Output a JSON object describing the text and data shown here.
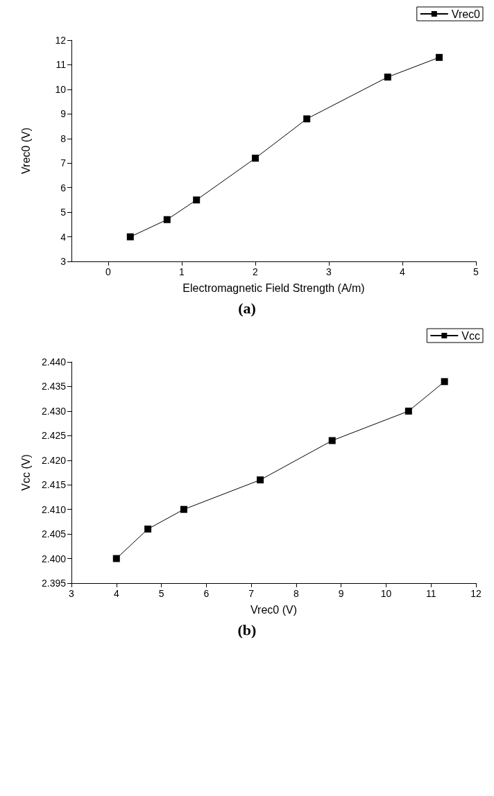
{
  "chart_data": [
    {
      "type": "line",
      "xlabel": "Electromagnetic Field Strength (A/m)",
      "ylabel": "Vrec0 (V)",
      "annotations": [
        "(a)"
      ],
      "series": [
        {
          "name": "Vrec0",
          "color": "#000000",
          "x": [
            0.3,
            0.8,
            1.2,
            2.0,
            2.7,
            3.8,
            4.5
          ],
          "values": [
            4.0,
            4.7,
            5.5,
            7.2,
            8.8,
            10.5,
            11.3
          ]
        }
      ],
      "xlim": [
        -0.5,
        5
      ],
      "xticks": [
        0,
        1,
        2,
        3,
        4,
        5
      ],
      "ylim": [
        3,
        12
      ],
      "yticks": [
        3,
        4,
        5,
        6,
        7,
        8,
        9,
        10,
        11,
        12
      ],
      "grid": false,
      "legend": "top right",
      "marker": "square",
      "line_style": "solid"
    },
    {
      "type": "line",
      "xlabel": "Vrec0 (V)",
      "ylabel": "Vcc (V)",
      "annotations": [
        "(b)"
      ],
      "series": [
        {
          "name": "Vcc",
          "color": "#000000",
          "x": [
            4.0,
            4.7,
            5.5,
            7.2,
            8.8,
            10.5,
            11.3
          ],
          "values": [
            2.4,
            2.406,
            2.41,
            2.416,
            2.424,
            2.43,
            2.436
          ]
        }
      ],
      "xlim": [
        3,
        12
      ],
      "xticks": [
        3,
        4,
        5,
        6,
        7,
        8,
        9,
        10,
        11,
        12
      ],
      "ylim": [
        2.395,
        2.44
      ],
      "yticks": [
        {
          "value": 2.395,
          "label": "2.395"
        },
        {
          "value": 2.4,
          "label": "2.400"
        },
        {
          "value": 2.405,
          "label": "2.405"
        },
        {
          "value": 2.41,
          "label": "2.410"
        },
        {
          "value": 2.415,
          "label": "2.415"
        },
        {
          "value": 2.42,
          "label": "2.420"
        },
        {
          "value": 2.425,
          "label": "2.425"
        },
        {
          "value": 2.43,
          "label": "2.430"
        },
        {
          "value": 2.435,
          "label": "2.435"
        },
        {
          "value": 2.44,
          "label": "2.440"
        }
      ],
      "grid": false,
      "legend": "top right",
      "marker": "square",
      "line_style": "solid"
    }
  ]
}
